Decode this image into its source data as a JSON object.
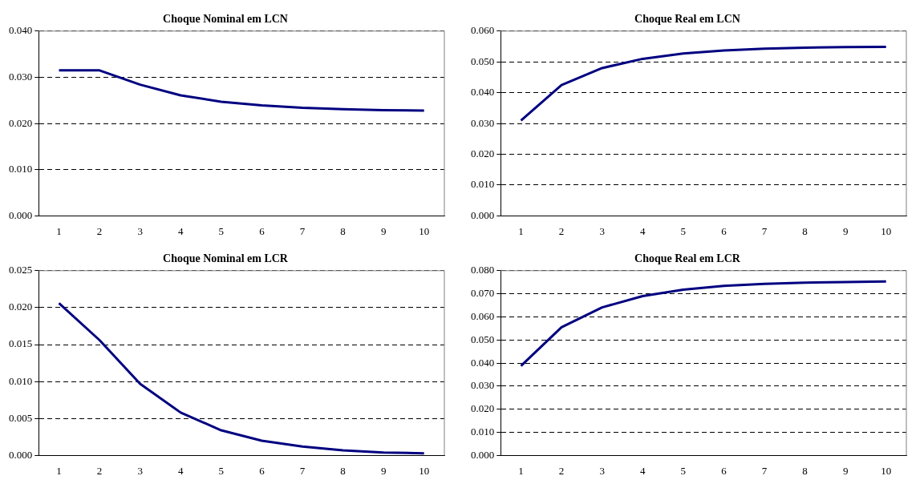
{
  "chart_data": [
    {
      "type": "line",
      "title": "Choque Nominal em LCN",
      "categories": [
        "1",
        "2",
        "3",
        "4",
        "5",
        "6",
        "7",
        "8",
        "9",
        "10"
      ],
      "series": [
        {
          "color": "#000080",
          "values": [
            0.0315,
            0.0315,
            0.0284,
            0.0261,
            0.0247,
            0.0239,
            0.0234,
            0.0231,
            0.0229,
            0.0228
          ]
        }
      ],
      "ylim": [
        0,
        0.04
      ],
      "yticks": [
        {
          "value": 0,
          "label": "0.000"
        },
        {
          "value": 0.01,
          "label": "0.010"
        },
        {
          "value": 0.02,
          "label": "0.020"
        },
        {
          "value": 0.03,
          "label": "0.030"
        },
        {
          "value": 0.04,
          "label": "0.040"
        }
      ],
      "grid": "y",
      "line_style": "solid",
      "legend": false
    },
    {
      "type": "line",
      "title": "Choque Real em LCN",
      "categories": [
        "1",
        "2",
        "3",
        "4",
        "5",
        "6",
        "7",
        "8",
        "9",
        "10"
      ],
      "series": [
        {
          "color": "#000080",
          "values": [
            0.031,
            0.0425,
            0.048,
            0.051,
            0.0527,
            0.0537,
            0.0543,
            0.0546,
            0.0548,
            0.0549
          ]
        }
      ],
      "ylim": [
        0,
        0.06
      ],
      "yticks": [
        {
          "value": 0,
          "label": "0.000"
        },
        {
          "value": 0.01,
          "label": "0.010"
        },
        {
          "value": 0.02,
          "label": "0.020"
        },
        {
          "value": 0.03,
          "label": "0.030"
        },
        {
          "value": 0.04,
          "label": "0.040"
        },
        {
          "value": 0.05,
          "label": "0.050"
        },
        {
          "value": 0.06,
          "label": "0.060"
        }
      ],
      "grid": "y",
      "line_style": "solid",
      "legend": false
    },
    {
      "type": "line",
      "title": "Choque Nominal em LCR",
      "categories": [
        "1",
        "2",
        "3",
        "4",
        "5",
        "6",
        "7",
        "8",
        "9",
        "10"
      ],
      "series": [
        {
          "color": "#000080",
          "values": [
            0.0206,
            0.0156,
            0.0097,
            0.0058,
            0.0034,
            0.002,
            0.0012,
            0.0007,
            0.0004,
            0.0003
          ]
        }
      ],
      "ylim": [
        0,
        0.025
      ],
      "yticks": [
        {
          "value": 0,
          "label": "0.000"
        },
        {
          "value": 0.005,
          "label": "0.005"
        },
        {
          "value": 0.01,
          "label": "0.010"
        },
        {
          "value": 0.015,
          "label": "0.015"
        },
        {
          "value": 0.02,
          "label": "0.020"
        },
        {
          "value": 0.025,
          "label": "0.025"
        }
      ],
      "grid": "y",
      "line_style": "solid",
      "legend": false
    },
    {
      "type": "line",
      "title": "Choque Real em LCR",
      "categories": [
        "1",
        "2",
        "3",
        "4",
        "5",
        "6",
        "7",
        "8",
        "9",
        "10"
      ],
      "series": [
        {
          "color": "#000080",
          "values": [
            0.0388,
            0.0555,
            0.0641,
            0.069,
            0.0718,
            0.0734,
            0.0743,
            0.0748,
            0.0751,
            0.0753
          ]
        }
      ],
      "ylim": [
        0,
        0.08
      ],
      "yticks": [
        {
          "value": 0,
          "label": "0.000"
        },
        {
          "value": 0.01,
          "label": "0.010"
        },
        {
          "value": 0.02,
          "label": "0.020"
        },
        {
          "value": 0.03,
          "label": "0.030"
        },
        {
          "value": 0.04,
          "label": "0.040"
        },
        {
          "value": 0.05,
          "label": "0.050"
        },
        {
          "value": 0.06,
          "label": "0.060"
        },
        {
          "value": 0.07,
          "label": "0.070"
        },
        {
          "value": 0.08,
          "label": "0.080"
        }
      ],
      "grid": "y",
      "line_style": "solid",
      "legend": false
    }
  ]
}
